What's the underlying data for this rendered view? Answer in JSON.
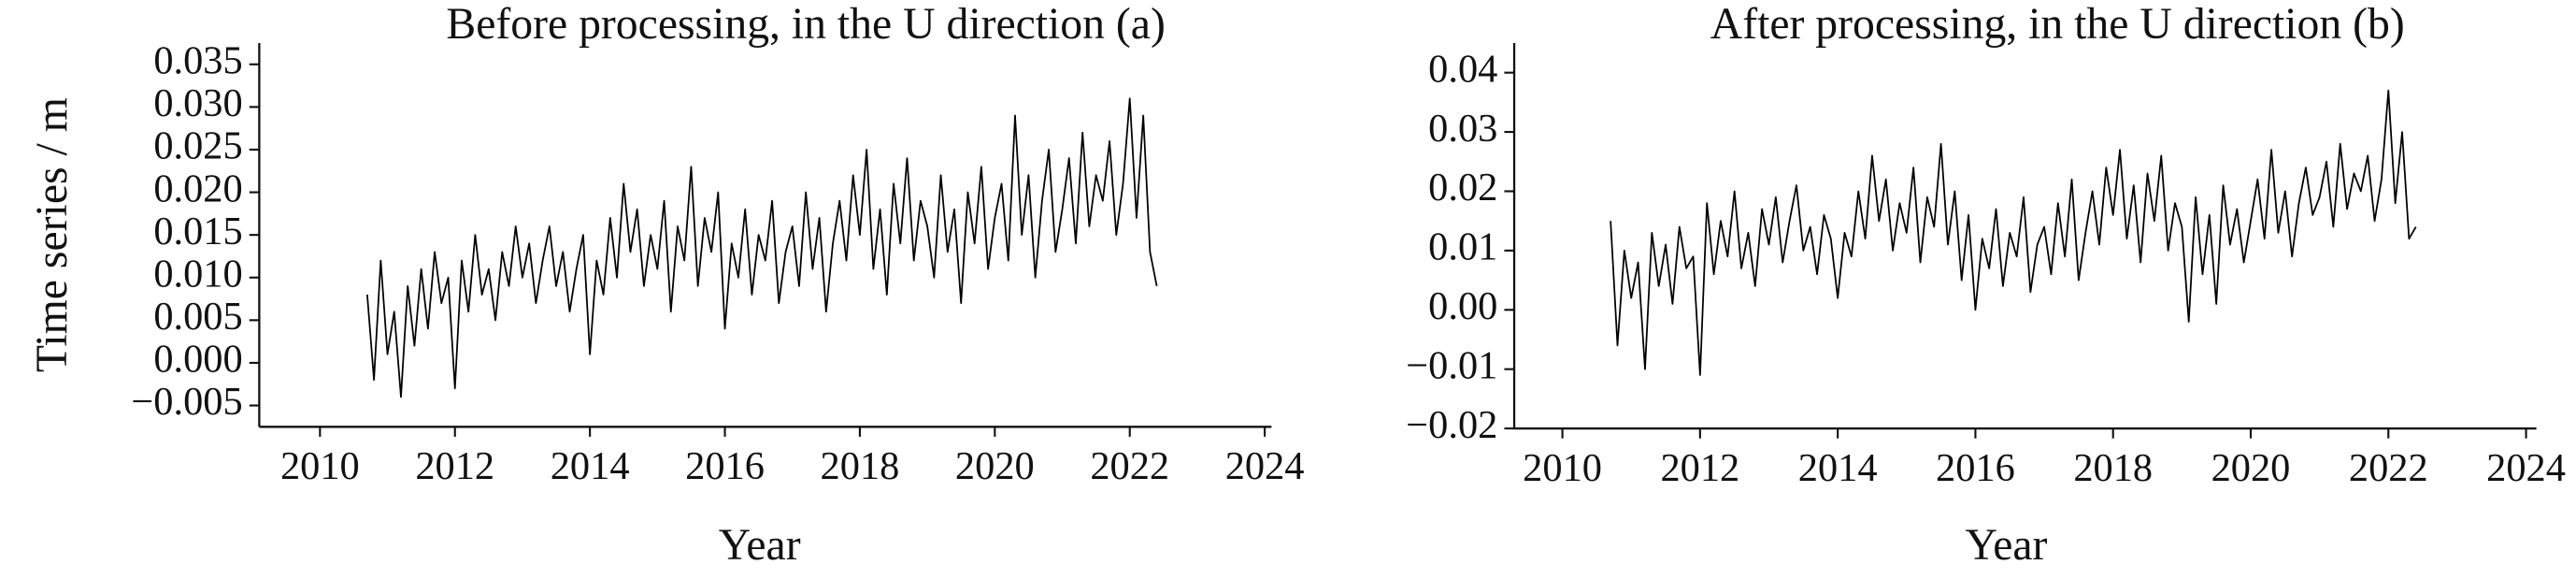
{
  "chart_data": [
    {
      "type": "line",
      "title": "Before processing, in the U direction  (a)",
      "y_label": "Time series / m",
      "x_label": "Year",
      "color": "#000000",
      "xlim": [
        2009.1,
        2024.1
      ],
      "xticks": [
        2010,
        2012,
        2014,
        2016,
        2018,
        2020,
        2022,
        2024
      ],
      "ylim": [
        -0.0075,
        0.0375
      ],
      "yticks": [
        {
          "value": -0.005,
          "label": "−0.005"
        },
        {
          "value": 0,
          "label": "0.000"
        },
        0.005,
        {
          "value": 0.01,
          "label": "0.010"
        },
        0.015,
        {
          "value": 0.02,
          "label": "0.020"
        },
        0.025,
        {
          "value": 0.03,
          "label": "0.030"
        },
        0.035
      ],
      "x": [
        2010.7,
        2010.8,
        2010.9,
        2011,
        2011.1,
        2011.2,
        2011.3,
        2011.4,
        2011.5,
        2011.6,
        2011.7,
        2011.8,
        2011.9,
        2012,
        2012.1,
        2012.2,
        2012.3,
        2012.4,
        2012.5,
        2012.6,
        2012.7,
        2012.8,
        2012.9,
        2013,
        2013.1,
        2013.2,
        2013.3,
        2013.4,
        2013.5,
        2013.6,
        2013.7,
        2013.8,
        2013.9,
        2014,
        2014.1,
        2014.2,
        2014.3,
        2014.4,
        2014.5,
        2014.6,
        2014.7,
        2014.8,
        2014.9,
        2015,
        2015.1,
        2015.2,
        2015.3,
        2015.4,
        2015.5,
        2015.6,
        2015.7,
        2015.8,
        2015.9,
        2016,
        2016.1,
        2016.2,
        2016.3,
        2016.4,
        2016.5,
        2016.6,
        2016.7,
        2016.8,
        2016.9,
        2017,
        2017.1,
        2017.2,
        2017.3,
        2017.4,
        2017.5,
        2017.6,
        2017.7,
        2017.8,
        2017.9,
        2018,
        2018.1,
        2018.2,
        2018.3,
        2018.4,
        2018.5,
        2018.6,
        2018.7,
        2018.8,
        2018.9,
        2019,
        2019.1,
        2019.2,
        2019.3,
        2019.4,
        2019.5,
        2019.6,
        2019.7,
        2019.8,
        2019.9,
        2020,
        2020.1,
        2020.2,
        2020.3,
        2020.4,
        2020.5,
        2020.6,
        2020.7,
        2020.8,
        2020.9,
        2021,
        2021.1,
        2021.2,
        2021.3,
        2021.4,
        2021.5,
        2021.6,
        2021.7,
        2021.8,
        2021.9,
        2022,
        2022.1,
        2022.2,
        2022.3,
        2022.4
      ],
      "values": [
        0.008,
        -0.002,
        0.012,
        0.001,
        0.006,
        -0.004,
        0.009,
        0.002,
        0.011,
        0.004,
        0.013,
        0.007,
        0.01,
        -0.003,
        0.012,
        0.006,
        0.015,
        0.008,
        0.011,
        0.005,
        0.013,
        0.009,
        0.016,
        0.01,
        0.014,
        0.007,
        0.012,
        0.016,
        0.009,
        0.013,
        0.006,
        0.011,
        0.015,
        0.001,
        0.012,
        0.008,
        0.017,
        0.01,
        0.021,
        0.013,
        0.018,
        0.009,
        0.015,
        0.011,
        0.019,
        0.006,
        0.016,
        0.012,
        0.023,
        0.009,
        0.017,
        0.013,
        0.02,
        0.004,
        0.014,
        0.01,
        0.018,
        0.008,
        0.015,
        0.012,
        0.019,
        0.007,
        0.013,
        0.016,
        0.009,
        0.02,
        0.011,
        0.017,
        0.006,
        0.014,
        0.019,
        0.012,
        0.022,
        0.015,
        0.025,
        0.011,
        0.018,
        0.008,
        0.021,
        0.014,
        0.024,
        0.012,
        0.019,
        0.016,
        0.01,
        0.022,
        0.013,
        0.018,
        0.007,
        0.02,
        0.014,
        0.023,
        0.011,
        0.017,
        0.021,
        0.012,
        0.029,
        0.015,
        0.022,
        0.01,
        0.019,
        0.025,
        0.013,
        0.018,
        0.024,
        0.014,
        0.027,
        0.016,
        0.022,
        0.019,
        0.026,
        0.015,
        0.021,
        0.031,
        0.017,
        0.029,
        0.013,
        0.009
      ]
    },
    {
      "type": "line",
      "title": "After processing, in the U direction  (b)",
      "x_label": "Year",
      "color": "#000000",
      "xlim": [
        2009.3,
        2024.15
      ],
      "xticks": [
        2010,
        2012,
        2014,
        2016,
        2018,
        2020,
        2022,
        2024
      ],
      "ylim": [
        -0.02,
        0.045
      ],
      "yticks": [
        {
          "value": -0.02,
          "label": "−0.02"
        },
        {
          "value": -0.01,
          "label": "−0.01"
        },
        {
          "value": 0,
          "label": "0.00"
        },
        0.01,
        0.02,
        0.03,
        0.04
      ],
      "x": [
        2010.7,
        2010.8,
        2010.9,
        2011,
        2011.1,
        2011.2,
        2011.3,
        2011.4,
        2011.5,
        2011.6,
        2011.7,
        2011.8,
        2011.9,
        2012,
        2012.1,
        2012.2,
        2012.3,
        2012.4,
        2012.5,
        2012.6,
        2012.7,
        2012.8,
        2012.9,
        2013,
        2013.1,
        2013.2,
        2013.3,
        2013.4,
        2013.5,
        2013.6,
        2013.7,
        2013.8,
        2013.9,
        2014,
        2014.1,
        2014.2,
        2014.3,
        2014.4,
        2014.5,
        2014.6,
        2014.7,
        2014.8,
        2014.9,
        2015,
        2015.1,
        2015.2,
        2015.3,
        2015.4,
        2015.5,
        2015.6,
        2015.7,
        2015.8,
        2015.9,
        2016,
        2016.1,
        2016.2,
        2016.3,
        2016.4,
        2016.5,
        2016.6,
        2016.7,
        2016.8,
        2016.9,
        2017,
        2017.1,
        2017.2,
        2017.3,
        2017.4,
        2017.5,
        2017.6,
        2017.7,
        2017.8,
        2017.9,
        2018,
        2018.1,
        2018.2,
        2018.3,
        2018.4,
        2018.5,
        2018.6,
        2018.7,
        2018.8,
        2018.9,
        2019,
        2019.1,
        2019.2,
        2019.3,
        2019.4,
        2019.5,
        2019.6,
        2019.7,
        2019.8,
        2019.9,
        2020,
        2020.1,
        2020.2,
        2020.3,
        2020.4,
        2020.5,
        2020.6,
        2020.7,
        2020.8,
        2020.9,
        2021,
        2021.1,
        2021.2,
        2021.3,
        2021.4,
        2021.5,
        2021.6,
        2021.7,
        2021.8,
        2021.9,
        2022,
        2022.1,
        2022.2,
        2022.3,
        2022.4
      ],
      "values": [
        0.015,
        -0.006,
        0.01,
        0.002,
        0.008,
        -0.01,
        0.013,
        0.004,
        0.011,
        0.001,
        0.014,
        0.007,
        0.009,
        -0.011,
        0.018,
        0.006,
        0.015,
        0.009,
        0.02,
        0.007,
        0.013,
        0.004,
        0.017,
        0.011,
        0.019,
        0.008,
        0.015,
        0.021,
        0.01,
        0.014,
        0.006,
        0.016,
        0.012,
        0.002,
        0.013,
        0.009,
        0.02,
        0.012,
        0.026,
        0.015,
        0.022,
        0.01,
        0.018,
        0.013,
        0.024,
        0.008,
        0.019,
        0.014,
        0.028,
        0.011,
        0.02,
        0.005,
        0.016,
        0.0,
        0.012,
        0.007,
        0.017,
        0.004,
        0.013,
        0.009,
        0.019,
        0.003,
        0.011,
        0.014,
        0.006,
        0.018,
        0.009,
        0.022,
        0.005,
        0.013,
        0.02,
        0.011,
        0.024,
        0.016,
        0.027,
        0.012,
        0.021,
        0.008,
        0.023,
        0.015,
        0.026,
        0.01,
        0.018,
        0.014,
        -0.002,
        0.019,
        0.006,
        0.016,
        0.001,
        0.021,
        0.011,
        0.017,
        0.008,
        0.015,
        0.022,
        0.012,
        0.027,
        0.013,
        0.02,
        0.009,
        0.018,
        0.024,
        0.016,
        0.019,
        0.025,
        0.014,
        0.028,
        0.017,
        0.023,
        0.02,
        0.026,
        0.015,
        0.022,
        0.037,
        0.018,
        0.03,
        0.012,
        0.014
      ]
    }
  ]
}
